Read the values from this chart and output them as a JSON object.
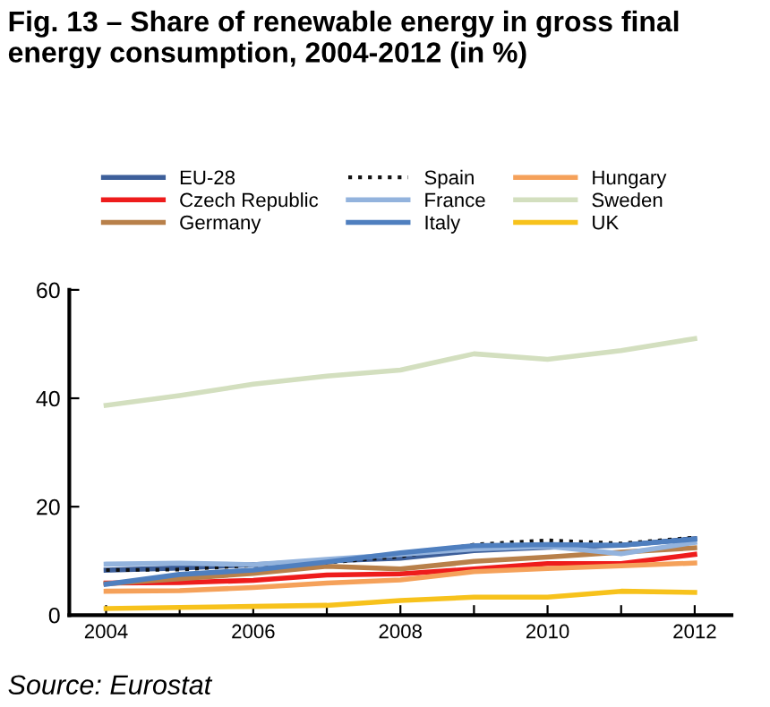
{
  "chart_data": {
    "type": "line",
    "title": "Fig. 13 – Share of renewable energy in gross final energy consumption, 2004-2012 (in %)",
    "annotations": [
      "Source: Eurostat"
    ],
    "x": [
      2004,
      2005,
      2006,
      2007,
      2008,
      2009,
      2010,
      2011,
      2012
    ],
    "series": [
      {
        "name": "EU-28",
        "color": "#3d5f9a",
        "values": [
          8.3,
          8.7,
          9.3,
          10.0,
          10.5,
          11.9,
          12.5,
          12.9,
          14.1
        ]
      },
      {
        "name": "Czech Republic",
        "color": "#ee1c1c",
        "values": [
          5.9,
          6.0,
          6.4,
          7.4,
          7.6,
          8.5,
          9.5,
          9.5,
          11.2
        ]
      },
      {
        "name": "Germany",
        "color": "#b8804a",
        "values": [
          5.8,
          6.7,
          7.7,
          9.0,
          8.5,
          9.9,
          10.7,
          11.6,
          12.4
        ]
      },
      {
        "name": "Spain",
        "color": "#111111",
        "line_style": "dotted",
        "values": [
          8.3,
          8.4,
          9.2,
          9.7,
          10.8,
          13.0,
          13.8,
          13.2,
          14.3
        ]
      },
      {
        "name": "France",
        "color": "#93b3dd",
        "values": [
          9.4,
          9.6,
          9.3,
          10.3,
          11.2,
          12.2,
          12.7,
          11.3,
          13.4
        ]
      },
      {
        "name": "Italy",
        "color": "#4f7fbf",
        "values": [
          5.7,
          7.5,
          8.3,
          9.8,
          11.5,
          12.8,
          13.0,
          12.9,
          14.0
        ]
      },
      {
        "name": "Hungary",
        "color": "#f5a15a",
        "values": [
          4.4,
          4.5,
          5.1,
          5.9,
          6.5,
          8.0,
          8.6,
          9.1,
          9.6
        ]
      },
      {
        "name": "Sweden",
        "color": "#d3dfbf",
        "values": [
          38.7,
          40.5,
          42.6,
          44.1,
          45.2,
          48.2,
          47.2,
          48.8,
          51.0
        ]
      },
      {
        "name": "UK",
        "color": "#f7c21c",
        "values": [
          1.2,
          1.4,
          1.6,
          1.8,
          2.7,
          3.3,
          3.3,
          4.4,
          4.2
        ]
      }
    ],
    "xlim": [
      2003.5,
      2012.5
    ],
    "xticks": [
      2004,
      {
        "value": 2005,
        "label": null
      },
      2006,
      {
        "value": 2007,
        "label": null
      },
      2008,
      {
        "value": 2009,
        "label": null
      },
      2010,
      {
        "value": 2011,
        "label": null
      },
      2012
    ],
    "ylim": [
      0,
      60
    ],
    "yticks": [
      0,
      20,
      40,
      60
    ],
    "grid": false,
    "legend": "top",
    "line_style": "solid",
    "marker": "none"
  }
}
